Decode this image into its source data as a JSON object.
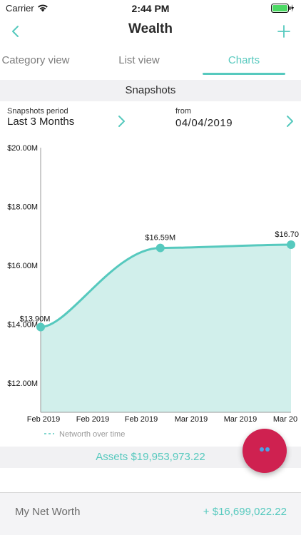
{
  "status_bar": {
    "carrier": "Carrier",
    "time": "2:44 PM"
  },
  "nav": {
    "title": "Wealth"
  },
  "tabs": [
    {
      "label": "Category view",
      "active": false
    },
    {
      "label": "List view",
      "active": false
    },
    {
      "label": "Charts",
      "active": true
    }
  ],
  "section_title": "Snapshots",
  "period": {
    "label": "Snapshots period",
    "value": "Last 3 Months"
  },
  "from": {
    "label": "from",
    "value": "04/04/2019"
  },
  "colors": {
    "accent": "#56c9be",
    "fill": "#d1efeb",
    "fab": "#cf2150"
  },
  "chart_data": {
    "type": "area",
    "y_ticks": [
      "$20.00M",
      "$18.00M",
      "$16.00M",
      "$14.00M",
      "$12.00M"
    ],
    "ylim": [
      11000000,
      20000000
    ],
    "x_labels": [
      "Feb 2019",
      "Feb 2019",
      "Feb 2019",
      "Mar 2019",
      "Mar 2019",
      "Mar 20"
    ],
    "series": [
      {
        "name": "Networth over time",
        "points": [
          {
            "x": "Feb 2019",
            "y": 13900000,
            "label": "$13.90M"
          },
          {
            "x": "Feb 2019",
            "y": 16590000,
            "label": "$16.59M"
          },
          {
            "x": "Mar 20",
            "y": 16700000,
            "label": "$16.70"
          }
        ]
      }
    ],
    "legend": "Networth over time"
  },
  "assets": {
    "text": "Assets $19,953,973.22"
  },
  "net_worth": {
    "label": "My Net Worth",
    "value": "+ $16,699,022.22"
  }
}
